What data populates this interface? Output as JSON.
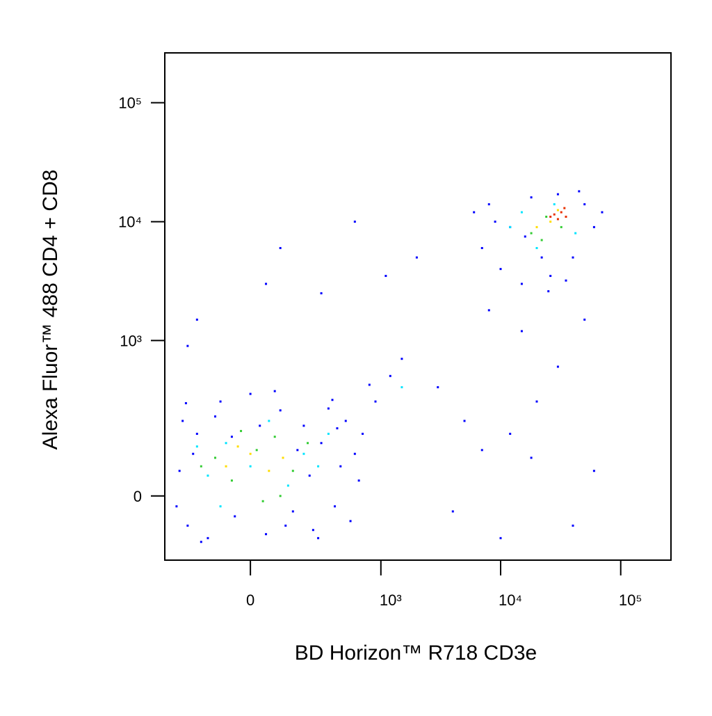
{
  "chart_data": {
    "type": "scatter",
    "x_label": "BD Horizon™ R718 CD3e",
    "y_label": "Alexa Fluor™ 488 CD4 + CD8",
    "scale": "biex",
    "xlim": [
      -410,
      262144
    ],
    "ylim": [
      -157,
      262144
    ],
    "xticks": [
      0,
      {
        "value": 1000,
        "label": "10³"
      },
      {
        "value": 10000,
        "label": "10⁴"
      },
      {
        "value": 100000,
        "label": "10⁵"
      }
    ],
    "yticks": [
      0,
      {
        "value": 1000,
        "label": "10³"
      },
      {
        "value": 10000,
        "label": "10⁴"
      },
      {
        "value": 100000,
        "label": "10⁵"
      }
    ],
    "series": [
      {
        "color": "#0000ff",
        "x": [
          -300,
          -250,
          -200,
          -280,
          -150,
          -100,
          -50,
          0,
          50,
          100,
          150,
          200,
          250,
          300,
          350,
          400,
          450,
          500,
          600,
          -320,
          -220,
          -120,
          30,
          120,
          230,
          380,
          550,
          650,
          -180,
          80,
          280,
          -60,
          170,
          420,
          -260,
          700,
          900,
          1200,
          1500,
          800,
          -250,
          -200,
          100,
          50,
          300,
          600,
          2000,
          1100,
          3000,
          5000,
          7000,
          12000,
          20000,
          30000,
          50000,
          15000,
          8000,
          25000,
          40000,
          60000,
          10000,
          4000,
          18000,
          6000,
          7000,
          8000,
          10000,
          12000,
          15000,
          18000,
          22000,
          26000,
          30000,
          40000,
          50000,
          60000,
          70000,
          16000,
          35000,
          9000,
          45000
        ],
        "y": [
          50,
          -60,
          150,
          200,
          -90,
          300,
          -40,
          350,
          -80,
          250,
          -30,
          180,
          -70,
          120,
          260,
          -20,
          60,
          200,
          90,
          -20,
          90,
          220,
          180,
          -60,
          40,
          310,
          -50,
          30,
          -100,
          370,
          -90,
          140,
          100,
          170,
          290,
          150,
          300,
          500,
          700,
          420,
          900,
          1500,
          6000,
          3000,
          2500,
          10000,
          5000,
          3500,
          400,
          200,
          100,
          150,
          300,
          600,
          1500,
          1200,
          1800,
          2600,
          -60,
          50,
          -90,
          -30,
          80,
          12000,
          6000,
          14000,
          4000,
          9000,
          3000,
          16000,
          5000,
          3500,
          17000,
          5000,
          14000,
          9000,
          12000,
          7500,
          3200,
          10000,
          18000
        ]
      },
      {
        "color": "#00e5ff",
        "x": [
          -150,
          -80,
          0,
          60,
          130,
          200,
          -200,
          350,
          -100,
          280,
          1500,
          12000,
          20000,
          28000,
          42000,
          15000
        ],
        "y": [
          40,
          120,
          60,
          200,
          20,
          90,
          110,
          150,
          -20,
          60,
          400,
          9000,
          6000,
          14000,
          8000,
          12000
        ]
      },
      {
        "color": "#33cc33",
        "x": [
          -120,
          -60,
          20,
          80,
          150,
          -30,
          100,
          -180,
          220,
          40,
          18000,
          24000,
          32000,
          22000
        ],
        "y": [
          80,
          30,
          100,
          140,
          50,
          160,
          0,
          60,
          120,
          -10,
          8000,
          11000,
          9000,
          7000
        ]
      },
      {
        "color": "#ffdd00",
        "x": [
          -80,
          0,
          60,
          -40,
          110,
          26000,
          30000,
          20000
        ],
        "y": [
          60,
          90,
          50,
          110,
          80,
          10000,
          12500,
          9000
        ]
      },
      {
        "color": "#e83000",
        "x": [
          28000,
          32000,
          35000,
          30000,
          26000,
          34000
        ],
        "y": [
          11500,
          12000,
          11000,
          10500,
          11000,
          13000
        ]
      }
    ]
  }
}
